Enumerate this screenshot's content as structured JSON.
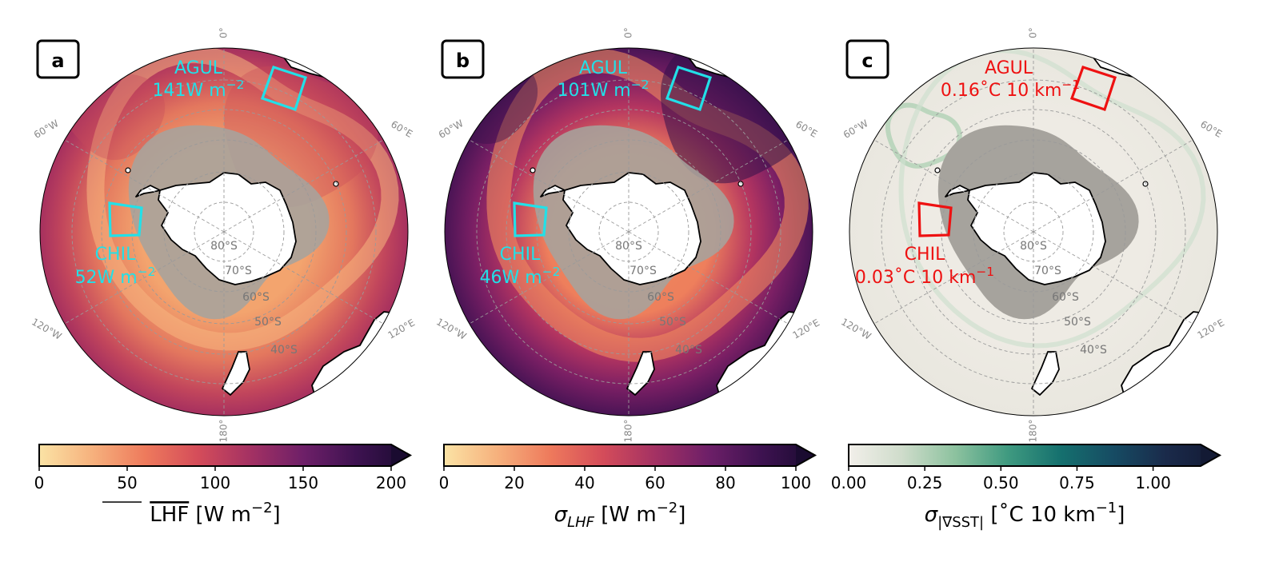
{
  "figure": {
    "panels": [
      {
        "id": "a",
        "label": "a",
        "box_color": "#22e0e8",
        "agul": {
          "name": "AGUL",
          "value": "141W m",
          "exp": "−2"
        },
        "chil": {
          "name": "CHIL",
          "value": "52W m",
          "exp": "−2"
        },
        "colorbar": {
          "ticks": [
            "0",
            "50",
            "100",
            "150",
            "200"
          ],
          "label_main": "LHF",
          "label_unit": " [W m",
          "label_exp": "−2",
          "label_close": "]",
          "stops": [
            "#fbe3a5",
            "#f6b17d",
            "#ee7a5c",
            "#d44c5a",
            "#a33163",
            "#6d1f68",
            "#3d1250",
            "#1a0b30"
          ],
          "extend_color": "#1a0b30"
        }
      },
      {
        "id": "b",
        "label": "b",
        "box_color": "#22e0e8",
        "agul": {
          "name": "AGUL",
          "value": "101W m",
          "exp": "−2"
        },
        "chil": {
          "name": "CHIL",
          "value": "46W m",
          "exp": "−2"
        },
        "colorbar": {
          "ticks": [
            "0",
            "20",
            "40",
            "60",
            "80",
            "100"
          ],
          "label_main": "σ",
          "label_sub": "LHF",
          "label_unit": " [W m",
          "label_exp": "−2",
          "label_close": "]",
          "stops": [
            "#fbe3a5",
            "#f6b17d",
            "#ee7a5c",
            "#d44c5a",
            "#a33163",
            "#6d1f68",
            "#3d1250",
            "#1a0b30"
          ],
          "extend_color": "#1a0b30"
        }
      },
      {
        "id": "c",
        "label": "c",
        "box_color": "#ee1111",
        "agul": {
          "name": "AGUL",
          "value": "0.16˚C 10 km",
          "exp": "−1"
        },
        "chil": {
          "name": "CHIL",
          "value": "0.03˚C 10 km",
          "exp": "−1"
        },
        "colorbar": {
          "ticks": [
            "0.00",
            "0.25",
            "0.50",
            "0.75",
            "1.00"
          ],
          "label_main": "σ",
          "label_sub": "|∇SST|",
          "label_unit": " [˚C 10 km",
          "label_exp": "−1",
          "label_close": "]",
          "stops": [
            "#f2efea",
            "#cfdccb",
            "#8dc29f",
            "#3f9a80",
            "#15706e",
            "#164b63",
            "#1a2a4a",
            "#131a34"
          ],
          "extend_color": "#131a34"
        }
      }
    ],
    "grid_labels": {
      "longitudes": [
        "0°",
        "60°E",
        "120°E",
        "180°",
        "120°W",
        "60°W"
      ],
      "latitudes": [
        "80°S",
        "70°S",
        "60°S",
        "50°S",
        "40°S"
      ]
    },
    "colors": {
      "ice_gray": "#a6a39d",
      "land": "#ffffff",
      "coastline": "#000000",
      "gridline": "#9a9a9a",
      "grid_label": "#777777"
    }
  }
}
